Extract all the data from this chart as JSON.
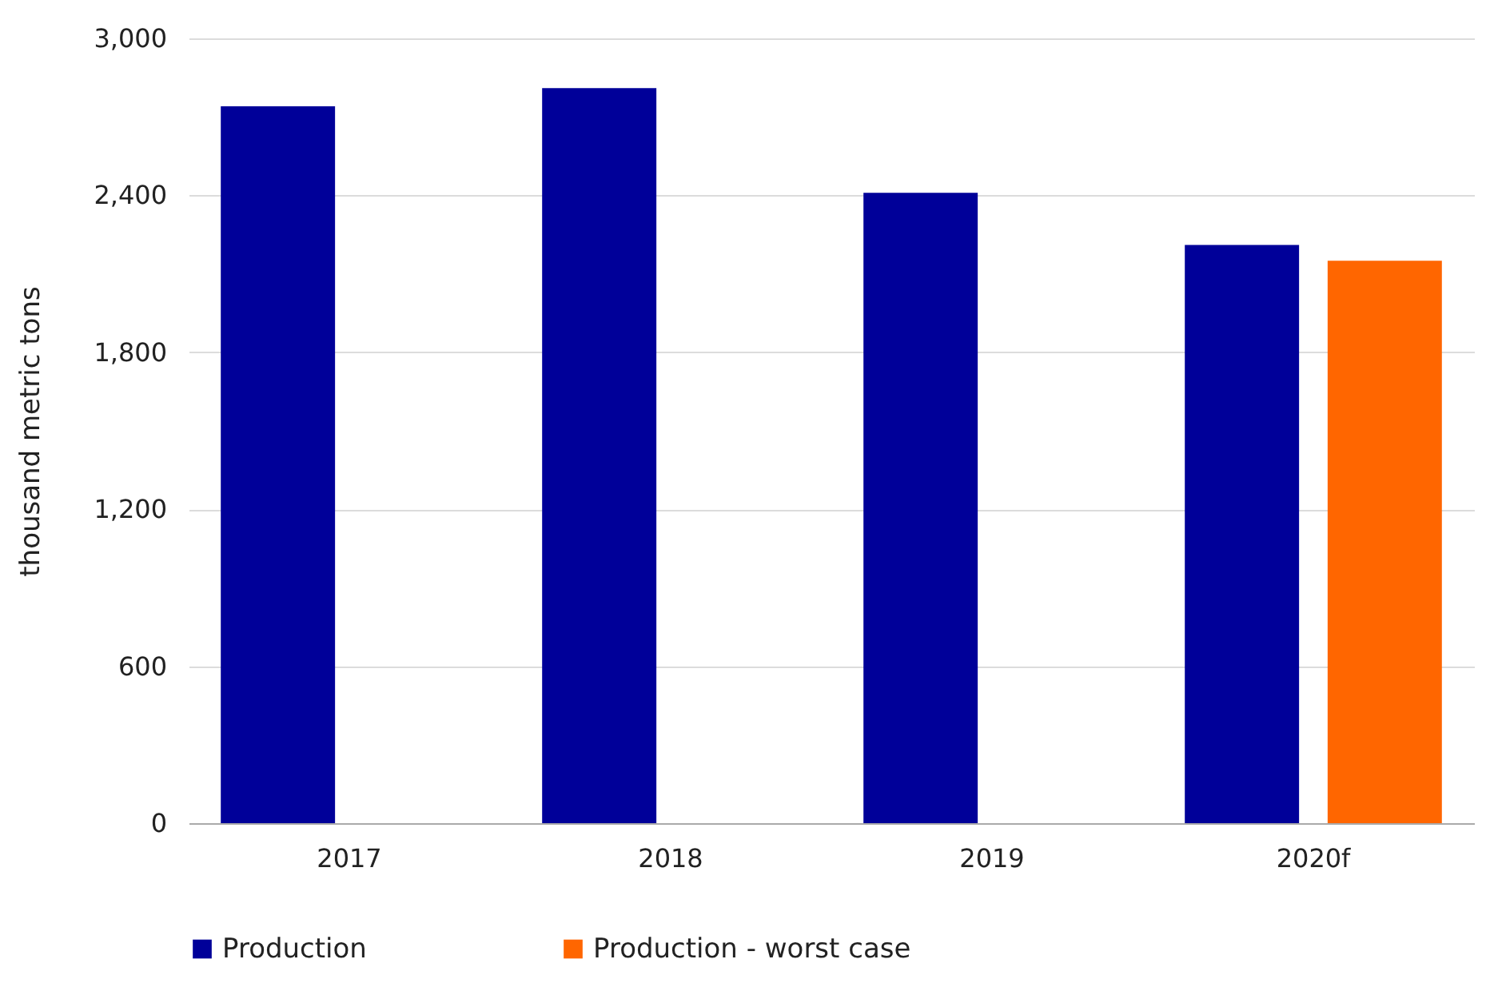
{
  "chart_data": {
    "type": "bar",
    "ylabel": "thousand metric tons",
    "categories": [
      "2017",
      "2018",
      "2019",
      "2020f"
    ],
    "series": [
      {
        "name": "Production",
        "color": "#000099",
        "values": [
          2740,
          2810,
          2410,
          2210
        ]
      },
      {
        "name": "Production - worst case",
        "color": "#ff6600",
        "values": [
          null,
          null,
          null,
          2150
        ]
      }
    ],
    "ylim": [
      0,
      3000
    ],
    "yticks": [
      0,
      600,
      {
        "value": 1200,
        "label": "1,200"
      },
      {
        "value": 1800,
        "label": "1,800"
      },
      {
        "value": 2400,
        "label": "2,400"
      },
      {
        "value": 3000,
        "label": "3,000"
      }
    ],
    "grid": "y",
    "legend": "bottom"
  }
}
